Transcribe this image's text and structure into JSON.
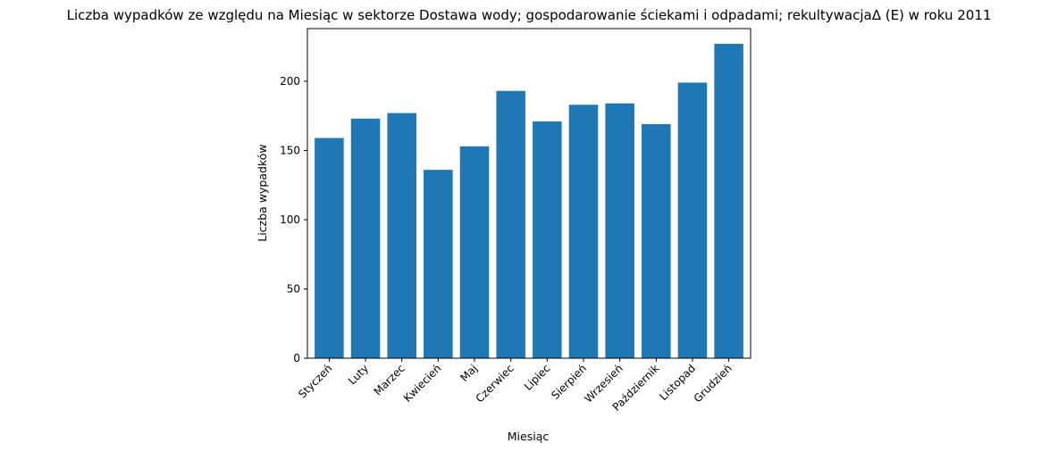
{
  "chart_data": {
    "type": "bar",
    "title": "Liczba wypadków ze względu na Miesiąc w sektorze Dostawa wody; gospodarowanie ściekami i odpadami;  rekultywacjaΔ  (E) w roku 2011",
    "xlabel": "Miesiąc",
    "ylabel": "Liczba wypadków",
    "categories": [
      "Styczeń",
      "Luty",
      "Marzec",
      "Kwiecień",
      "Maj",
      "Czerwiec",
      "Lipiec",
      "Sierpień",
      "Wrzesień",
      "Październik",
      "Listopad",
      "Grudzień"
    ],
    "values": [
      159,
      173,
      177,
      136,
      153,
      193,
      171,
      183,
      184,
      169,
      199,
      227
    ],
    "ylim": [
      0,
      238
    ],
    "yticks": [
      0,
      50,
      100,
      150,
      200
    ],
    "grid": false,
    "legend": "none",
    "colors": {
      "bar": "#1f77b4"
    }
  }
}
